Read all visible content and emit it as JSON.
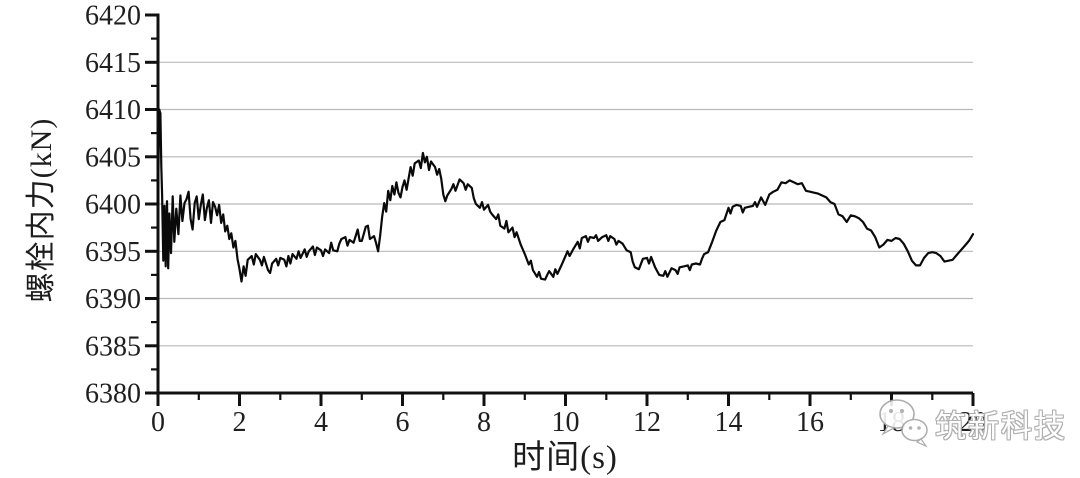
{
  "chart_data": {
    "type": "line",
    "title": "",
    "xlabel": "时间(s)",
    "ylabel": "螺栓内力(kN)",
    "xlim": [
      0,
      20
    ],
    "ylim": [
      6380,
      6420
    ],
    "grid": "horizontal-only",
    "legend": "none",
    "colors": {
      "line": "#0a0a0a",
      "axis": "#111111",
      "grid": "#b9b9b9",
      "ink": "#1f1f1f",
      "watermark": "#ababab",
      "background": "#ffffff"
    },
    "xticks_major": [
      0,
      2,
      4,
      6,
      8,
      10,
      12,
      14,
      16,
      18,
      20
    ],
    "xtick_labels": [
      "0",
      "2",
      "4",
      "6",
      "8",
      "10",
      "12",
      "14",
      "16",
      "18",
      "20"
    ],
    "xticks_minor": [
      1,
      3,
      5,
      7,
      9,
      11,
      13,
      15,
      17,
      19
    ],
    "yticks_major": [
      6380,
      6385,
      6390,
      6395,
      6400,
      6405,
      6410,
      6415,
      6420
    ],
    "ytick_labels": [
      "6380",
      "6385",
      "6390",
      "6395",
      "6400",
      "6405",
      "6410",
      "6415",
      "6420"
    ],
    "yticks_minor": [
      6382.5,
      6387.5,
      6392.5,
      6397.5,
      6402.5,
      6407.5,
      6412.5,
      6417.5
    ],
    "gridlines_y": [
      6385,
      6390,
      6395,
      6400,
      6405,
      6410,
      6415
    ],
    "series": [
      {
        "name": "螺栓内力",
        "color": "#0a0a0a",
        "points": [
          [
            0,
            6400
          ],
          [
            0.03,
            6410
          ],
          [
            0.06,
            6409.6
          ],
          [
            0.08,
            6404
          ],
          [
            0.1,
            6401
          ],
          [
            0.13,
            6394
          ],
          [
            0.16,
            6399.8
          ],
          [
            0.19,
            6393.4
          ],
          [
            0.22,
            6400.3
          ],
          [
            0.25,
            6393.2
          ],
          [
            0.28,
            6399
          ],
          [
            0.32,
            6394.8
          ],
          [
            0.36,
            6400.8
          ],
          [
            0.4,
            6396
          ],
          [
            0.45,
            6399.5
          ],
          [
            0.5,
            6396.8
          ],
          [
            0.55,
            6400.9
          ],
          [
            0.6,
            6398.2
          ],
          [
            0.65,
            6400.1
          ],
          [
            0.7,
            6400.5
          ],
          [
            0.75,
            6401.3
          ],
          [
            0.8,
            6398.4
          ],
          [
            0.85,
            6397.3
          ],
          [
            0.9,
            6400.1
          ],
          [
            0.95,
            6400.8
          ],
          [
            1,
            6398.4
          ],
          [
            1.05,
            6399.9
          ],
          [
            1.1,
            6401
          ],
          [
            1.15,
            6398.3
          ],
          [
            1.2,
            6399.6
          ],
          [
            1.25,
            6400.4
          ],
          [
            1.3,
            6398
          ],
          [
            1.35,
            6400.2
          ],
          [
            1.4,
            6399.7
          ],
          [
            1.45,
            6398.8
          ],
          [
            1.5,
            6399.9
          ],
          [
            1.55,
            6398
          ],
          [
            1.6,
            6398.9
          ],
          [
            1.65,
            6397.1
          ],
          [
            1.7,
            6397.7
          ],
          [
            1.75,
            6396.3
          ],
          [
            1.8,
            6396.9
          ],
          [
            1.85,
            6395.4
          ],
          [
            1.9,
            6396.1
          ],
          [
            1.95,
            6394.2
          ],
          [
            2,
            6393.1
          ],
          [
            2.05,
            6391.8
          ],
          [
            2.1,
            6393.4
          ],
          [
            2.15,
            6392.4
          ],
          [
            2.2,
            6394.1
          ],
          [
            2.3,
            6394.5
          ],
          [
            2.35,
            6393.6
          ],
          [
            2.4,
            6394.7
          ],
          [
            2.5,
            6394.1
          ],
          [
            2.55,
            6393.5
          ],
          [
            2.6,
            6394.4
          ],
          [
            2.7,
            6393
          ],
          [
            2.75,
            6392.7
          ],
          [
            2.8,
            6393.7
          ],
          [
            2.9,
            6394.2
          ],
          [
            2.95,
            6393.5
          ],
          [
            3,
            6394.3
          ],
          [
            3.1,
            6394.1
          ],
          [
            3.15,
            6393.4
          ],
          [
            3.2,
            6394.5
          ],
          [
            3.25,
            6393.7
          ],
          [
            3.3,
            6394.7
          ],
          [
            3.4,
            6394.2
          ],
          [
            3.45,
            6395
          ],
          [
            3.5,
            6394.3
          ],
          [
            3.6,
            6395.2
          ],
          [
            3.65,
            6394.4
          ],
          [
            3.7,
            6395
          ],
          [
            3.8,
            6395.5
          ],
          [
            3.85,
            6394.6
          ],
          [
            3.9,
            6395.4
          ],
          [
            4,
            6395.1
          ],
          [
            4.05,
            6394.5
          ],
          [
            4.1,
            6395.2
          ],
          [
            4.2,
            6394.8
          ],
          [
            4.25,
            6395.9
          ],
          [
            4.3,
            6395.1
          ],
          [
            4.4,
            6395
          ],
          [
            4.45,
            6395.8
          ],
          [
            4.5,
            6396.3
          ],
          [
            4.6,
            6396.5
          ],
          [
            4.65,
            6395.6
          ],
          [
            4.7,
            6396.2
          ],
          [
            4.8,
            6395.9
          ],
          [
            4.9,
            6397.3
          ],
          [
            4.95,
            6396.1
          ],
          [
            5,
            6396.1
          ],
          [
            5.1,
            6397.6
          ],
          [
            5.15,
            6397.7
          ],
          [
            5.2,
            6396.3
          ],
          [
            5.3,
            6396.6
          ],
          [
            5.35,
            6395.9
          ],
          [
            5.4,
            6395
          ],
          [
            5.45,
            6396.6
          ],
          [
            5.5,
            6398.6
          ],
          [
            5.55,
            6400.1
          ],
          [
            5.6,
            6399.2
          ],
          [
            5.65,
            6401.4
          ],
          [
            5.7,
            6400.4
          ],
          [
            5.75,
            6401.9
          ],
          [
            5.8,
            6401
          ],
          [
            5.85,
            6402.3
          ],
          [
            5.9,
            6401.2
          ],
          [
            5.95,
            6400.7
          ],
          [
            6,
            6401.8
          ],
          [
            6.05,
            6402.5
          ],
          [
            6.1,
            6401.5
          ],
          [
            6.2,
            6403.9
          ],
          [
            6.25,
            6403
          ],
          [
            6.3,
            6404.3
          ],
          [
            6.4,
            6404.6
          ],
          [
            6.45,
            6403.8
          ],
          [
            6.5,
            6405.4
          ],
          [
            6.55,
            6404.4
          ],
          [
            6.6,
            6405
          ],
          [
            6.65,
            6403.6
          ],
          [
            6.7,
            6404.5
          ],
          [
            6.8,
            6403.9
          ],
          [
            6.85,
            6403.1
          ],
          [
            6.9,
            6403.7
          ],
          [
            6.95,
            6402.7
          ],
          [
            7,
            6401
          ],
          [
            7.05,
            6400.3
          ],
          [
            7.1,
            6400.9
          ],
          [
            7.2,
            6401.6
          ],
          [
            7.25,
            6402.1
          ],
          [
            7.3,
            6401.4
          ],
          [
            7.4,
            6402.6
          ],
          [
            7.5,
            6402.2
          ],
          [
            7.55,
            6401.5
          ],
          [
            7.6,
            6402.1
          ],
          [
            7.7,
            6401.7
          ],
          [
            7.75,
            6400.6
          ],
          [
            7.8,
            6400
          ],
          [
            7.9,
            6399.6
          ],
          [
            7.95,
            6400.2
          ],
          [
            8,
            6399.4
          ],
          [
            8.1,
            6399.9
          ],
          [
            8.15,
            6399.2
          ],
          [
            8.2,
            6398.9
          ],
          [
            8.3,
            6398.4
          ],
          [
            8.35,
            6398.9
          ],
          [
            8.4,
            6397.7
          ],
          [
            8.5,
            6397.4
          ],
          [
            8.55,
            6398.2
          ],
          [
            8.6,
            6397
          ],
          [
            8.7,
            6397.5
          ],
          [
            8.75,
            6396.5
          ],
          [
            8.8,
            6397
          ],
          [
            8.9,
            6395.7
          ],
          [
            9,
            6394.7
          ],
          [
            9.1,
            6393.6
          ],
          [
            9.15,
            6394
          ],
          [
            9.2,
            6393
          ],
          [
            9.3,
            6392.3
          ],
          [
            9.35,
            6392.8
          ],
          [
            9.4,
            6392.1
          ],
          [
            9.5,
            6392
          ],
          [
            9.55,
            6392.5
          ],
          [
            9.6,
            6392.9
          ],
          [
            9.7,
            6392.3
          ],
          [
            9.75,
            6393.1
          ],
          [
            9.8,
            6392.6
          ],
          [
            9.9,
            6393.5
          ],
          [
            10,
            6394.5
          ],
          [
            10.05,
            6395
          ],
          [
            10.1,
            6394.5
          ],
          [
            10.2,
            6395.3
          ],
          [
            10.3,
            6396
          ],
          [
            10.35,
            6395.3
          ],
          [
            10.4,
            6396.4
          ],
          [
            10.5,
            6396.6
          ],
          [
            10.55,
            6396
          ],
          [
            10.6,
            6396.5
          ],
          [
            10.7,
            6396.4
          ],
          [
            10.75,
            6396.7
          ],
          [
            10.8,
            6396.1
          ],
          [
            10.9,
            6396.5
          ],
          [
            11,
            6396.7
          ],
          [
            11.05,
            6396.1
          ],
          [
            11.1,
            6396.6
          ],
          [
            11.2,
            6396.3
          ],
          [
            11.25,
            6395.7
          ],
          [
            11.3,
            6396.1
          ],
          [
            11.4,
            6395.8
          ],
          [
            11.5,
            6395.1
          ],
          [
            11.6,
            6394.9
          ],
          [
            11.65,
            6393.9
          ],
          [
            11.7,
            6393.3
          ],
          [
            11.8,
            6393.1
          ],
          [
            11.9,
            6394.2
          ],
          [
            12,
            6394.3
          ],
          [
            12.05,
            6393.7
          ],
          [
            12.1,
            6394.4
          ],
          [
            12.2,
            6393.3
          ],
          [
            12.3,
            6392.5
          ],
          [
            12.4,
            6392.4
          ],
          [
            12.45,
            6392.9
          ],
          [
            12.5,
            6392.3
          ],
          [
            12.6,
            6393.2
          ],
          [
            12.7,
            6393
          ],
          [
            12.75,
            6392.6
          ],
          [
            12.8,
            6393.3
          ],
          [
            12.9,
            6393.4
          ],
          [
            13,
            6393.5
          ],
          [
            13.05,
            6393
          ],
          [
            13.1,
            6393.6
          ],
          [
            13.2,
            6393.7
          ],
          [
            13.3,
            6393.6
          ],
          [
            13.35,
            6394.2
          ],
          [
            13.4,
            6394.7
          ],
          [
            13.5,
            6394.9
          ],
          [
            13.6,
            6396
          ],
          [
            13.7,
            6397.2
          ],
          [
            13.8,
            6398.1
          ],
          [
            13.9,
            6398.3
          ],
          [
            14,
            6399.6
          ],
          [
            14.05,
            6399
          ],
          [
            14.1,
            6399.7
          ],
          [
            14.2,
            6399.9
          ],
          [
            14.3,
            6399.8
          ],
          [
            14.35,
            6399.1
          ],
          [
            14.4,
            6399.6
          ],
          [
            14.5,
            6399.7
          ],
          [
            14.6,
            6399.8
          ],
          [
            14.65,
            6400.2
          ],
          [
            14.7,
            6399.7
          ],
          [
            14.8,
            6400.7
          ],
          [
            14.9,
            6399.9
          ],
          [
            15,
            6401
          ],
          [
            15.1,
            6401.3
          ],
          [
            15.2,
            6401.5
          ],
          [
            15.3,
            6402.3
          ],
          [
            15.4,
            6402.2
          ],
          [
            15.5,
            6402.5
          ],
          [
            15.6,
            6402.3
          ],
          [
            15.7,
            6402.1
          ],
          [
            15.8,
            6402.2
          ],
          [
            15.9,
            6401.4
          ],
          [
            16,
            6401.3
          ],
          [
            16.1,
            6401.2
          ],
          [
            16.2,
            6401.1
          ],
          [
            16.3,
            6400.9
          ],
          [
            16.4,
            6400.7
          ],
          [
            16.5,
            6400.2
          ],
          [
            16.6,
            6400
          ],
          [
            16.7,
            6398.9
          ],
          [
            16.8,
            6398.7
          ],
          [
            16.9,
            6398.1
          ],
          [
            17,
            6398.8
          ],
          [
            17.1,
            6398.7
          ],
          [
            17.2,
            6398.5
          ],
          [
            17.3,
            6398.1
          ],
          [
            17.4,
            6397.4
          ],
          [
            17.5,
            6397.2
          ],
          [
            17.6,
            6396.5
          ],
          [
            17.7,
            6395.4
          ],
          [
            17.8,
            6395.7
          ],
          [
            17.9,
            6396.2
          ],
          [
            18,
            6396.1
          ],
          [
            18.1,
            6396.4
          ],
          [
            18.2,
            6396.3
          ],
          [
            18.3,
            6395.8
          ],
          [
            18.4,
            6395
          ],
          [
            18.5,
            6394
          ],
          [
            18.6,
            6393.5
          ],
          [
            18.7,
            6393.5
          ],
          [
            18.8,
            6394.3
          ],
          [
            18.9,
            6394.8
          ],
          [
            19,
            6394.9
          ],
          [
            19.1,
            6394.8
          ],
          [
            19.2,
            6394.5
          ],
          [
            19.3,
            6393.9
          ],
          [
            19.4,
            6394
          ],
          [
            19.5,
            6394.1
          ],
          [
            19.6,
            6394.6
          ],
          [
            19.7,
            6395.1
          ],
          [
            19.8,
            6395.6
          ],
          [
            19.9,
            6396.1
          ],
          [
            20,
            6396.8
          ]
        ]
      }
    ]
  },
  "watermark": {
    "icon": "wechat-icon",
    "text": "筑新科技"
  }
}
